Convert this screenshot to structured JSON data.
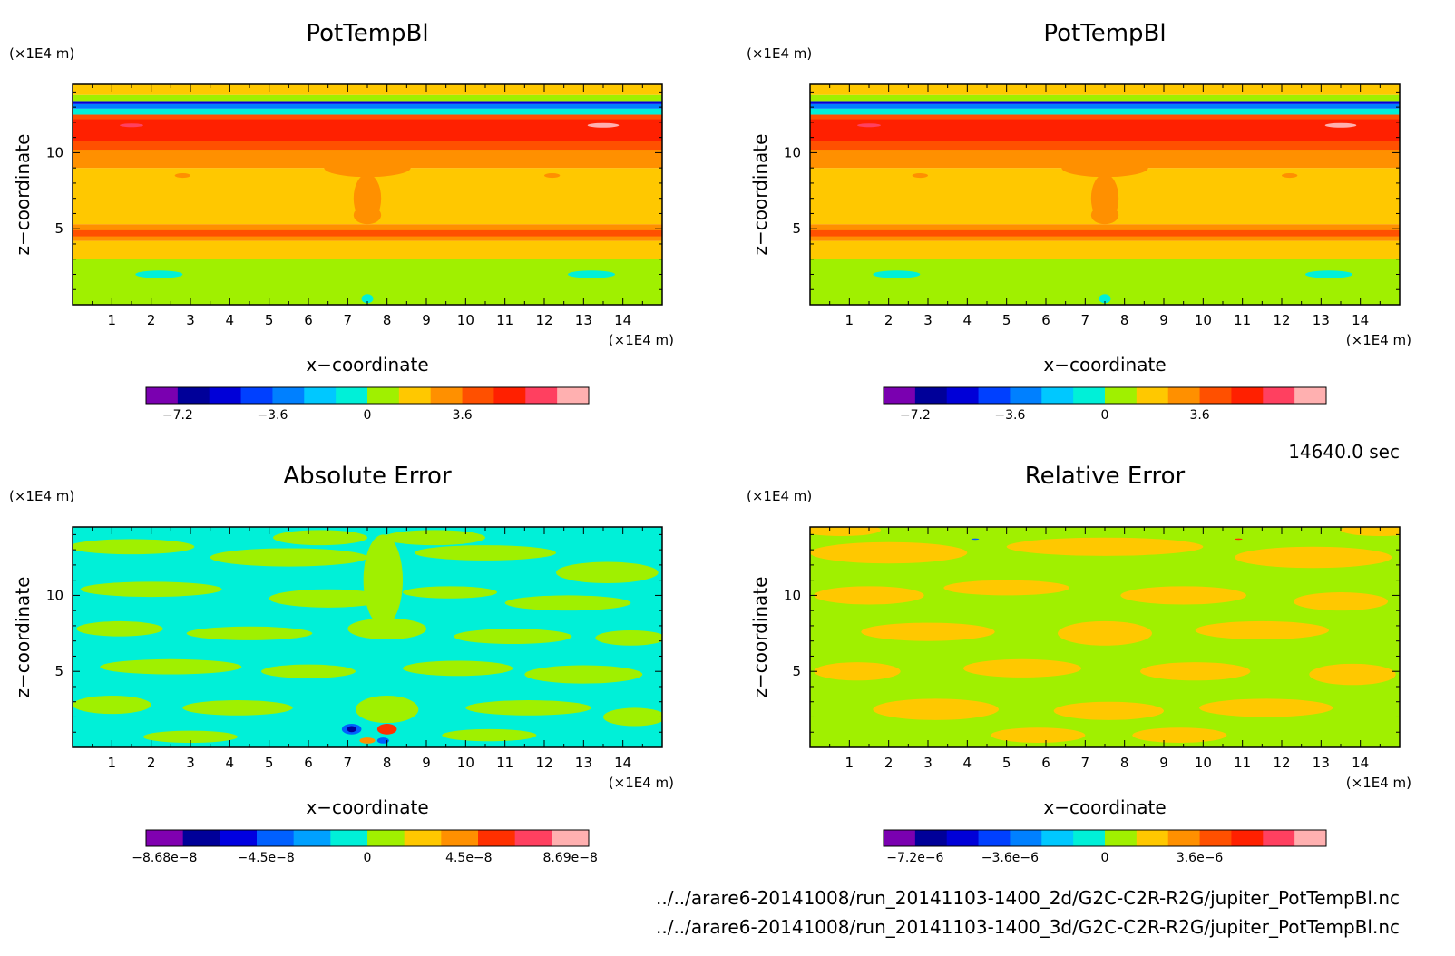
{
  "figure": {
    "time_label": "14640.0 sec",
    "file_paths": [
      "../../arare6-20141008/run_20141103-1400_2d/G2C-C2R-R2G/jupiter_PotTempBl.nc",
      "../../arare6-20141008/run_20141103-1400_3d/G2C-C2R-R2G/jupiter_PotTempBl.nc"
    ]
  },
  "chart_data": [
    {
      "type": "heatmap",
      "title": "PotTempBl",
      "xlabel": "x−coordinate",
      "ylabel": "z−coordinate",
      "x_unit": "(×1E4 m)",
      "y_unit": "(×1E4 m)",
      "xlim": [
        0,
        15
      ],
      "ylim": [
        0,
        14.5
      ],
      "x_ticks": [
        "1",
        "2",
        "3",
        "4",
        "5",
        "6",
        "7",
        "8",
        "9",
        "10",
        "11",
        "12",
        "13",
        "14"
      ],
      "y_ticks": [
        "5",
        "10"
      ],
      "colorbar_ticks": [
        "−7.2",
        "−3.6",
        "0",
        "3.6"
      ],
      "colorbar_colors": [
        "#7a00b0",
        "#000099",
        "#0000d8",
        "#0040ff",
        "#0080ff",
        "#00c8ff",
        "#00f0d8",
        "#a0f000",
        "#ffc800",
        "#ff9000",
        "#ff5000",
        "#ff2000",
        "#ff4060",
        "#ffb0b0"
      ],
      "pattern": "pottemp"
    },
    {
      "type": "heatmap",
      "title": "PotTempBl",
      "xlabel": "x−coordinate",
      "ylabel": "z−coordinate",
      "x_unit": "(×1E4 m)",
      "y_unit": "(×1E4 m)",
      "xlim": [
        0,
        15
      ],
      "ylim": [
        0,
        14.5
      ],
      "x_ticks": [
        "1",
        "2",
        "3",
        "4",
        "5",
        "6",
        "7",
        "8",
        "9",
        "10",
        "11",
        "12",
        "13",
        "14"
      ],
      "y_ticks": [
        "5",
        "10"
      ],
      "colorbar_ticks": [
        "−7.2",
        "−3.6",
        "0",
        "3.6"
      ],
      "colorbar_colors": [
        "#7a00b0",
        "#000099",
        "#0000d8",
        "#0040ff",
        "#0080ff",
        "#00c8ff",
        "#00f0d8",
        "#a0f000",
        "#ffc800",
        "#ff9000",
        "#ff5000",
        "#ff2000",
        "#ff4060",
        "#ffb0b0"
      ],
      "pattern": "pottemp"
    },
    {
      "type": "heatmap",
      "title": "Absolute Error",
      "xlabel": "x−coordinate",
      "ylabel": "z−coordinate",
      "x_unit": "(×1E4 m)",
      "y_unit": "(×1E4 m)",
      "xlim": [
        0,
        15
      ],
      "ylim": [
        0,
        14.5
      ],
      "x_ticks": [
        "1",
        "2",
        "3",
        "4",
        "5",
        "6",
        "7",
        "8",
        "9",
        "10",
        "11",
        "12",
        "13",
        "14"
      ],
      "y_ticks": [
        "5",
        "10"
      ],
      "colorbar_ticks": [
        "−8.68e−8",
        "−4.5e−8",
        "0",
        "4.5e−8",
        "8.69e−8"
      ],
      "colorbar_colors": [
        "#8000b0",
        "#000099",
        "#0000e0",
        "#0060ff",
        "#00a0ff",
        "#00f0d8",
        "#a0f000",
        "#ffc800",
        "#ff9000",
        "#ff3000",
        "#ff4060",
        "#ffb0b0"
      ],
      "pattern": "abserr"
    },
    {
      "type": "heatmap",
      "title": "Relative Error",
      "xlabel": "x−coordinate",
      "ylabel": "z−coordinate",
      "x_unit": "(×1E4 m)",
      "y_unit": "(×1E4 m)",
      "xlim": [
        0,
        15
      ],
      "ylim": [
        0,
        14.5
      ],
      "x_ticks": [
        "1",
        "2",
        "3",
        "4",
        "5",
        "6",
        "7",
        "8",
        "9",
        "10",
        "11",
        "12",
        "13",
        "14"
      ],
      "y_ticks": [
        "5",
        "10"
      ],
      "colorbar_ticks": [
        "−7.2e−6",
        "−3.6e−6",
        "0",
        "3.6e−6"
      ],
      "colorbar_colors": [
        "#7a00b0",
        "#000099",
        "#0000d8",
        "#0040ff",
        "#0080ff",
        "#00c8ff",
        "#00f0d8",
        "#a0f000",
        "#ffc800",
        "#ff9000",
        "#ff5000",
        "#ff2000",
        "#ff4060",
        "#ffb0b0"
      ],
      "pattern": "relerr"
    }
  ]
}
